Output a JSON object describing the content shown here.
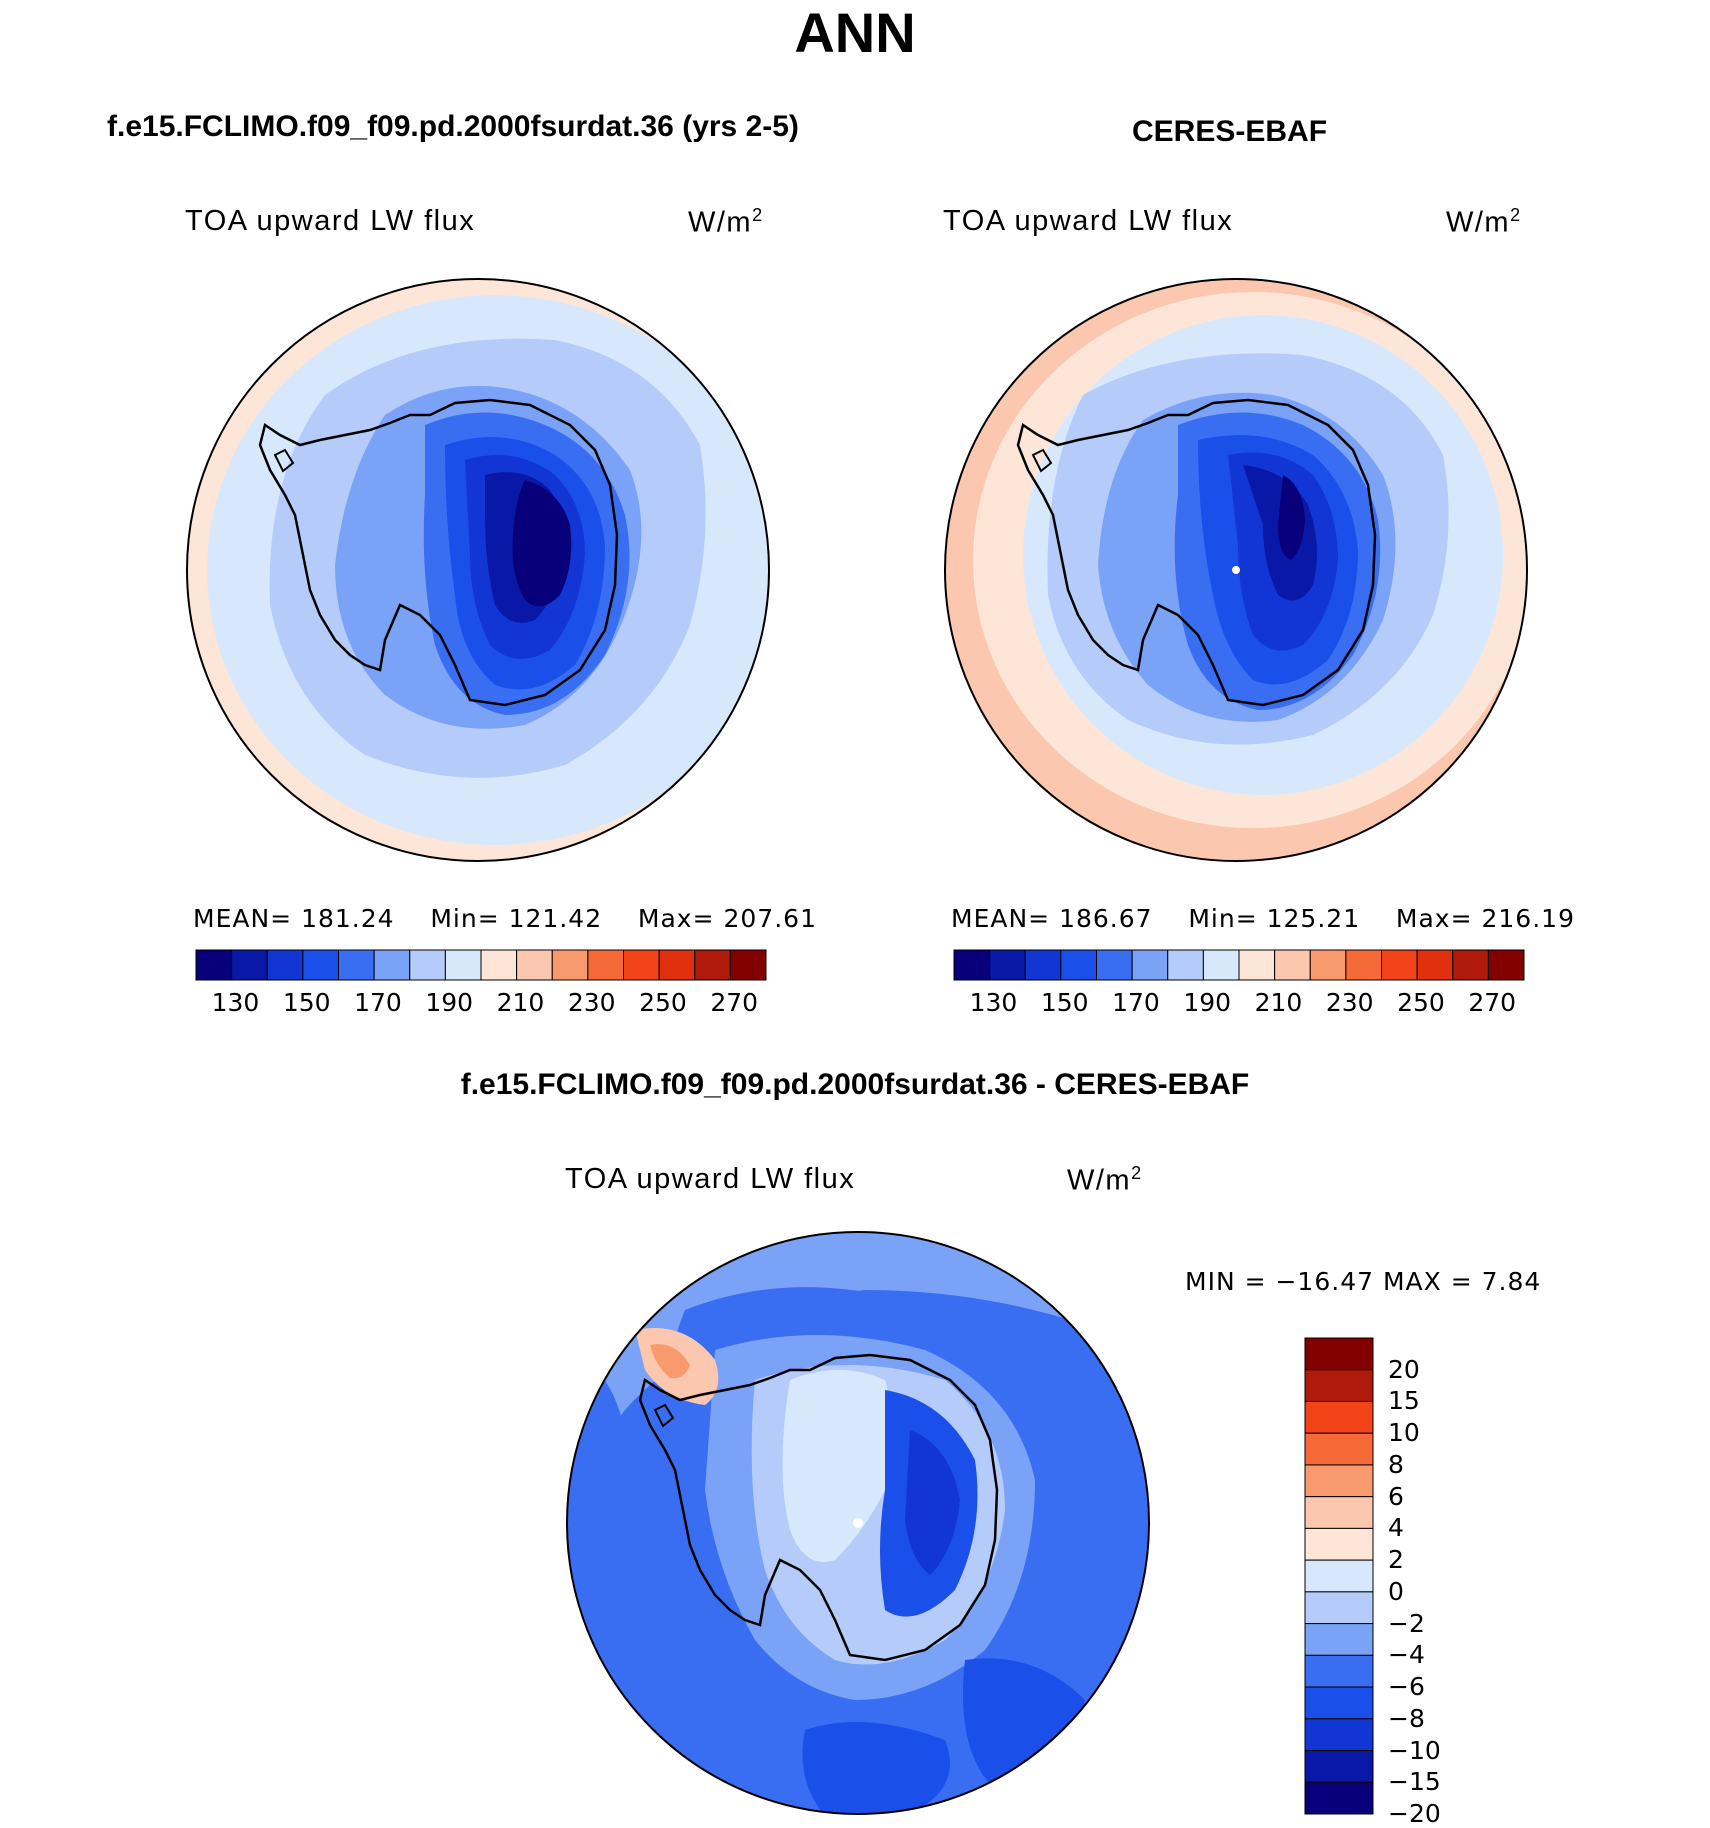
{
  "title": "ANN",
  "colors": {
    "abs_scale": [
      "#08007a",
      "#0a18a8",
      "#1236d4",
      "#1a4fea",
      "#3a6ef2",
      "#7aa2f6",
      "#b5ccfa",
      "#d8e8fc",
      "#fde6d8",
      "#fbc7ae",
      "#f89a6e",
      "#f56a38",
      "#f24418",
      "#e0300e",
      "#b01a0a",
      "#830000"
    ],
    "diff_scale": [
      "#08007a",
      "#0a18a8",
      "#1236d4",
      "#1a4fea",
      "#3a6ef2",
      "#7aa2f6",
      "#b5ccfa",
      "#d8e8fc",
      "#fde6d8",
      "#fbc7ae",
      "#f89a6e",
      "#f56a38",
      "#f24418",
      "#b01a0a",
      "#830000"
    ]
  },
  "panels": {
    "model": {
      "subtitle": "f.e15.FCLIMO.f09_f09.pd.2000fsurdat.36 (yrs 2-5)",
      "variable": "TOA upward LW flux",
      "units": "W/m",
      "units_exp": "2",
      "mean_label": "MEAN=",
      "mean": "181.24",
      "min_label": "Min=",
      "min": "121.42",
      "max_label": "Max=",
      "max": "207.61",
      "colorbar_ticks": [
        "130",
        "150",
        "170",
        "190",
        "210",
        "230",
        "250",
        "270"
      ]
    },
    "obs": {
      "subtitle": "CERES-EBAF",
      "variable": "TOA upward LW flux",
      "units": "W/m",
      "units_exp": "2",
      "mean_label": "MEAN=",
      "mean": "186.67",
      "min_label": "Min=",
      "min": "125.21",
      "max_label": "Max=",
      "max": "216.19",
      "colorbar_ticks": [
        "130",
        "150",
        "170",
        "190",
        "210",
        "230",
        "250",
        "270"
      ]
    },
    "diff": {
      "subtitle": "f.e15.FCLIMO.f09_f09.pd.2000fsurdat.36 - CERES-EBAF",
      "variable": "TOA upward LW flux",
      "units": "W/m",
      "units_exp": "2",
      "minmax": "MIN = −16.47 MAX =    7.84",
      "colorbar_ticks": [
        "20",
        "15",
        "10",
        "8",
        "6",
        "4",
        "2",
        "0",
        "−2",
        "−4",
        "−6",
        "−8",
        "−10",
        "−15",
        "−20"
      ]
    }
  }
}
